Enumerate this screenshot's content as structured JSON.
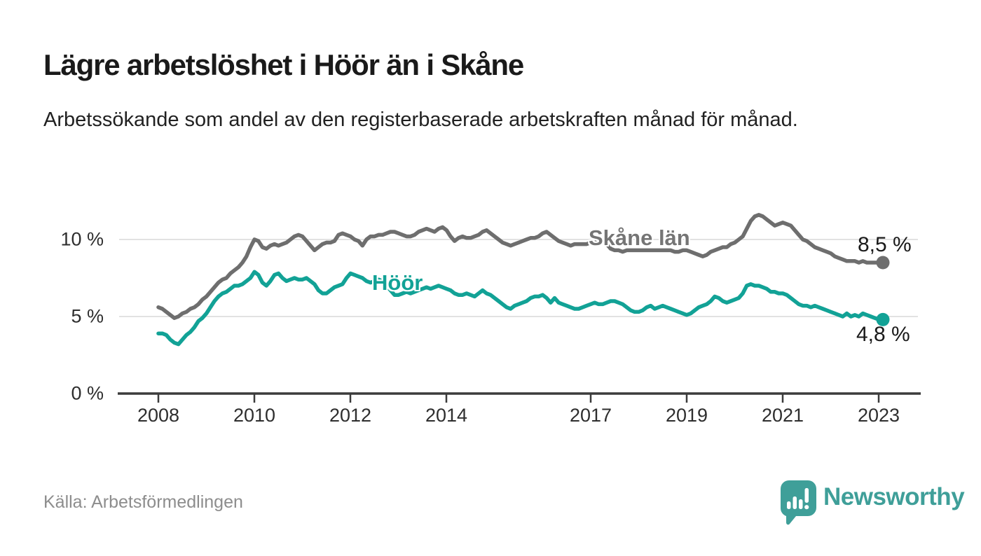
{
  "title": "Lägre arbetslöshet i Höör än i Skåne",
  "subtitle": "Arbetssökande som andel av den registerbaserade arbetskraften månad för månad.",
  "source": "Källa: Arbetsförmedlingen",
  "branding": {
    "name": "Newsworthy",
    "icon": "speech-bubble-bar-chart-icon",
    "color": "#3f9f99"
  },
  "chart_data": {
    "type": "line",
    "title": "Lägre arbetslöshet i Höör än i Skåne",
    "subtitle": "Arbetssökande som andel av den registerbaserade arbetskraften månad för månad.",
    "x_unit": "month",
    "x_start": "2008-01",
    "x_end": "2023-02",
    "x_ticks": [
      "2008",
      "2010",
      "2012",
      "2014",
      "2017",
      "2019",
      "2021",
      "2023"
    ],
    "y_ticks": [
      "10 %",
      "5 %",
      "0 %"
    ],
    "ylabel": "",
    "xlabel": "",
    "ylim": [
      0,
      12.7
    ],
    "grid": "horizontal",
    "gridline_values": [
      5,
      10
    ],
    "axis_color": "#3b3b3b",
    "grid_color": "#d9d9d9",
    "legend_position": "inline-labels",
    "series": [
      {
        "name": "Skåne län",
        "color": "#6e6e6e",
        "label_color": "#757575",
        "end_label": "8,5 %",
        "end_value": 8.5,
        "values": [
          5.6,
          5.5,
          5.3,
          5.1,
          4.9,
          5.0,
          5.2,
          5.3,
          5.5,
          5.6,
          5.8,
          6.1,
          6.3,
          6.6,
          6.9,
          7.2,
          7.4,
          7.5,
          7.8,
          8.0,
          8.2,
          8.5,
          8.9,
          9.5,
          10.0,
          9.9,
          9.5,
          9.4,
          9.6,
          9.7,
          9.6,
          9.7,
          9.8,
          10.0,
          10.2,
          10.3,
          10.2,
          9.9,
          9.6,
          9.3,
          9.5,
          9.7,
          9.8,
          9.8,
          9.9,
          10.3,
          10.4,
          10.3,
          10.2,
          10.0,
          9.9,
          9.6,
          10.0,
          10.2,
          10.2,
          10.3,
          10.3,
          10.4,
          10.5,
          10.5,
          10.4,
          10.3,
          10.2,
          10.2,
          10.3,
          10.5,
          10.6,
          10.7,
          10.6,
          10.5,
          10.7,
          10.8,
          10.6,
          10.2,
          9.9,
          10.1,
          10.2,
          10.1,
          10.1,
          10.2,
          10.3,
          10.5,
          10.6,
          10.4,
          10.2,
          10.0,
          9.8,
          9.7,
          9.6,
          9.7,
          9.8,
          9.9,
          10.0,
          10.1,
          10.1,
          10.2,
          10.4,
          10.5,
          10.3,
          10.1,
          9.9,
          9.8,
          9.7,
          9.6,
          9.7,
          9.7,
          9.7,
          9.7,
          9.8,
          9.8,
          9.9,
          10.0,
          9.7,
          9.4,
          9.3,
          9.3,
          9.2,
          9.3,
          9.3,
          9.3,
          9.3,
          9.3,
          9.3,
          9.3,
          9.3,
          9.3,
          9.3,
          9.3,
          9.3,
          9.2,
          9.2,
          9.3,
          9.3,
          9.2,
          9.1,
          9.0,
          8.9,
          9.0,
          9.2,
          9.3,
          9.4,
          9.5,
          9.5,
          9.7,
          9.8,
          10.0,
          10.2,
          10.7,
          11.2,
          11.5,
          11.6,
          11.5,
          11.3,
          11.1,
          10.9,
          11.0,
          11.1,
          11.0,
          10.9,
          10.6,
          10.3,
          10.0,
          9.9,
          9.7,
          9.5,
          9.4,
          9.3,
          9.2,
          9.1,
          8.9,
          8.8,
          8.7,
          8.6,
          8.6,
          8.6,
          8.5,
          8.6,
          8.5,
          8.5,
          8.5,
          8.5,
          8.5
        ]
      },
      {
        "name": "Höör",
        "color": "#12a296",
        "label_color": "#12a296",
        "end_label": "4,8 %",
        "end_value": 4.8,
        "values": [
          3.9,
          3.9,
          3.8,
          3.5,
          3.3,
          3.2,
          3.5,
          3.8,
          4.0,
          4.3,
          4.7,
          4.9,
          5.2,
          5.6,
          6.0,
          6.3,
          6.5,
          6.6,
          6.8,
          7.0,
          7.0,
          7.1,
          7.3,
          7.5,
          7.9,
          7.7,
          7.2,
          7.0,
          7.3,
          7.7,
          7.8,
          7.5,
          7.3,
          7.4,
          7.5,
          7.4,
          7.4,
          7.5,
          7.3,
          7.1,
          6.7,
          6.5,
          6.5,
          6.7,
          6.9,
          7.0,
          7.1,
          7.5,
          7.8,
          7.7,
          7.6,
          7.5,
          7.3,
          7.2,
          7.3,
          7.4,
          7.3,
          7.0,
          6.7,
          6.4,
          6.4,
          6.5,
          6.6,
          6.5,
          6.6,
          6.7,
          6.8,
          6.9,
          6.8,
          6.9,
          7.0,
          6.9,
          6.8,
          6.7,
          6.5,
          6.4,
          6.4,
          6.5,
          6.4,
          6.3,
          6.5,
          6.7,
          6.5,
          6.4,
          6.2,
          6.0,
          5.8,
          5.6,
          5.5,
          5.7,
          5.8,
          5.9,
          6.0,
          6.2,
          6.3,
          6.3,
          6.4,
          6.2,
          5.9,
          6.2,
          5.9,
          5.8,
          5.7,
          5.6,
          5.5,
          5.5,
          5.6,
          5.7,
          5.8,
          5.9,
          5.8,
          5.8,
          5.9,
          6.0,
          6.0,
          5.9,
          5.8,
          5.6,
          5.4,
          5.3,
          5.3,
          5.4,
          5.6,
          5.7,
          5.5,
          5.6,
          5.7,
          5.6,
          5.5,
          5.4,
          5.3,
          5.2,
          5.1,
          5.2,
          5.4,
          5.6,
          5.7,
          5.8,
          6.0,
          6.3,
          6.2,
          6.0,
          5.9,
          6.0,
          6.1,
          6.2,
          6.5,
          7.0,
          7.1,
          7.0,
          7.0,
          6.9,
          6.8,
          6.6,
          6.6,
          6.5,
          6.5,
          6.4,
          6.2,
          6.0,
          5.8,
          5.7,
          5.7,
          5.6,
          5.7,
          5.6,
          5.5,
          5.4,
          5.3,
          5.2,
          5.1,
          5.0,
          5.2,
          5.0,
          5.1,
          5.0,
          5.2,
          5.1,
          5.0,
          4.9,
          4.8,
          4.8
        ]
      }
    ]
  }
}
